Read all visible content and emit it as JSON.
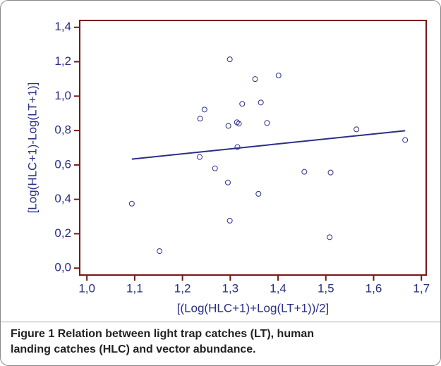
{
  "chart_data": {
    "type": "scatter",
    "xlabel": "[(Log(HLC+1)+Log(LT+1))/2]",
    "ylabel": "[Log(HLC+1)-Log(LT+1)]",
    "caption_label": "Figure 1",
    "caption": "Relation between light trap catches (LT), human landing catches (HLC) and vector abundance.",
    "xlim": [
      0.985,
      1.71
    ],
    "ylim": [
      -0.04,
      1.44
    ],
    "xticks": [
      {
        "value": 1.0,
        "label": "1,0"
      },
      {
        "value": 1.1,
        "label": "1,1"
      },
      {
        "value": 1.2,
        "label": "1,2"
      },
      {
        "value": 1.3,
        "label": "1,3"
      },
      {
        "value": 1.4,
        "label": "1,4"
      },
      {
        "value": 1.5,
        "label": "1,5"
      },
      {
        "value": 1.6,
        "label": "1,6"
      },
      {
        "value": 1.7,
        "label": "1,7"
      }
    ],
    "yticks": [
      {
        "value": 0.0,
        "label": "0,0"
      },
      {
        "value": 0.2,
        "label": "0,2"
      },
      {
        "value": 0.4,
        "label": "0,4"
      },
      {
        "value": 0.6,
        "label": "0,6"
      },
      {
        "value": 0.8,
        "label": "0,8"
      },
      {
        "value": 1.0,
        "label": "1,0"
      },
      {
        "value": 1.2,
        "label": "1,2"
      },
      {
        "value": 1.4,
        "label": "1,4"
      }
    ],
    "series": [
      {
        "color": "#2a2f86",
        "x": [
          1.094,
          1.152,
          1.237,
          1.246,
          1.236,
          1.268,
          1.295,
          1.296,
          1.299,
          1.299,
          1.314,
          1.318,
          1.315,
          1.325,
          1.352,
          1.359,
          1.364,
          1.377,
          1.401,
          1.455,
          1.51,
          1.508,
          1.564,
          1.666
        ],
        "values": [
          0.375,
          0.099,
          0.869,
          0.922,
          0.646,
          0.58,
          0.498,
          0.827,
          1.214,
          0.276,
          0.848,
          0.84,
          0.704,
          0.955,
          1.099,
          0.432,
          0.963,
          0.844,
          1.12,
          0.56,
          0.556,
          0.18,
          0.807,
          0.745
        ]
      }
    ],
    "fit": {
      "color": "#2a2f86",
      "x": [
        1.094,
        1.666
      ],
      "values": [
        0.634,
        0.799
      ]
    },
    "frame_color": "#7a1616",
    "label_color": "#2a2f86"
  }
}
